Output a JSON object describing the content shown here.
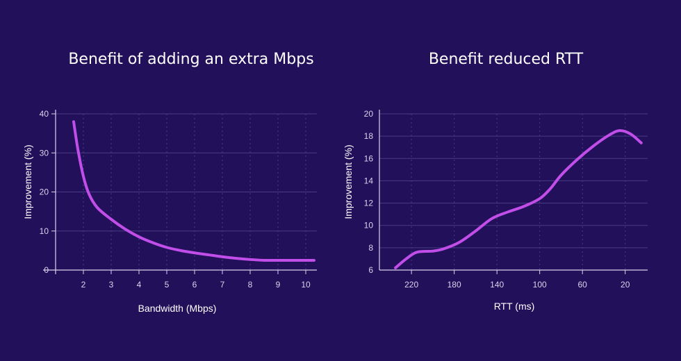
{
  "colors": {
    "background": "#22105a",
    "line": "#c14ee8",
    "grid": "#4a3b86",
    "axis": "#d9d4ec"
  },
  "chart_data": [
    {
      "type": "line",
      "title": "Benefit of adding an extra Mbps",
      "xlabel": "Bandwidth (Mbps)",
      "ylabel": "Improvement (%)",
      "xlim": [
        1.0,
        10.4
      ],
      "ylim": [
        0,
        40
      ],
      "xticks": [
        2,
        3,
        4,
        5,
        6,
        7,
        8,
        9,
        10
      ],
      "yticks": [
        0,
        10,
        20,
        30,
        40
      ],
      "grid": true,
      "series": [
        {
          "x": [
            1.65,
            1.8,
            2.0,
            2.2,
            2.5,
            3.0,
            3.5,
            4.0,
            4.5,
            5.0,
            5.5,
            6.0,
            6.5,
            7.0,
            7.5,
            8.0,
            8.5,
            9.0,
            9.5,
            10.0,
            10.3
          ],
          "y": [
            38,
            31,
            24,
            19.5,
            16,
            13,
            10.5,
            8.5,
            7,
            5.8,
            5.0,
            4.4,
            3.9,
            3.4,
            3.0,
            2.7,
            2.5,
            2.5,
            2.5,
            2.5,
            2.5
          ]
        }
      ]
    },
    {
      "type": "line",
      "title": "Benefit reduced RTT",
      "xlabel": "RTT (ms)",
      "ylabel": "Improvement (%)",
      "xlim": [
        250,
        -1
      ],
      "ylim": [
        6,
        20
      ],
      "xticks": [
        220,
        180,
        140,
        100,
        60,
        20
      ],
      "yticks": [
        6,
        8,
        10,
        12,
        14,
        16,
        18,
        20
      ],
      "x_reversed": true,
      "grid": true,
      "series": [
        {
          "x": [
            235,
            225,
            215,
            200,
            190,
            175,
            160,
            145,
            130,
            115,
            100,
            90,
            80,
            65,
            50,
            35,
            25,
            15,
            5
          ],
          "y": [
            6.2,
            7.0,
            7.6,
            7.7,
            7.9,
            8.5,
            9.5,
            10.6,
            11.2,
            11.7,
            12.4,
            13.3,
            14.5,
            15.9,
            17.1,
            18.1,
            18.5,
            18.2,
            17.4
          ]
        }
      ]
    }
  ]
}
